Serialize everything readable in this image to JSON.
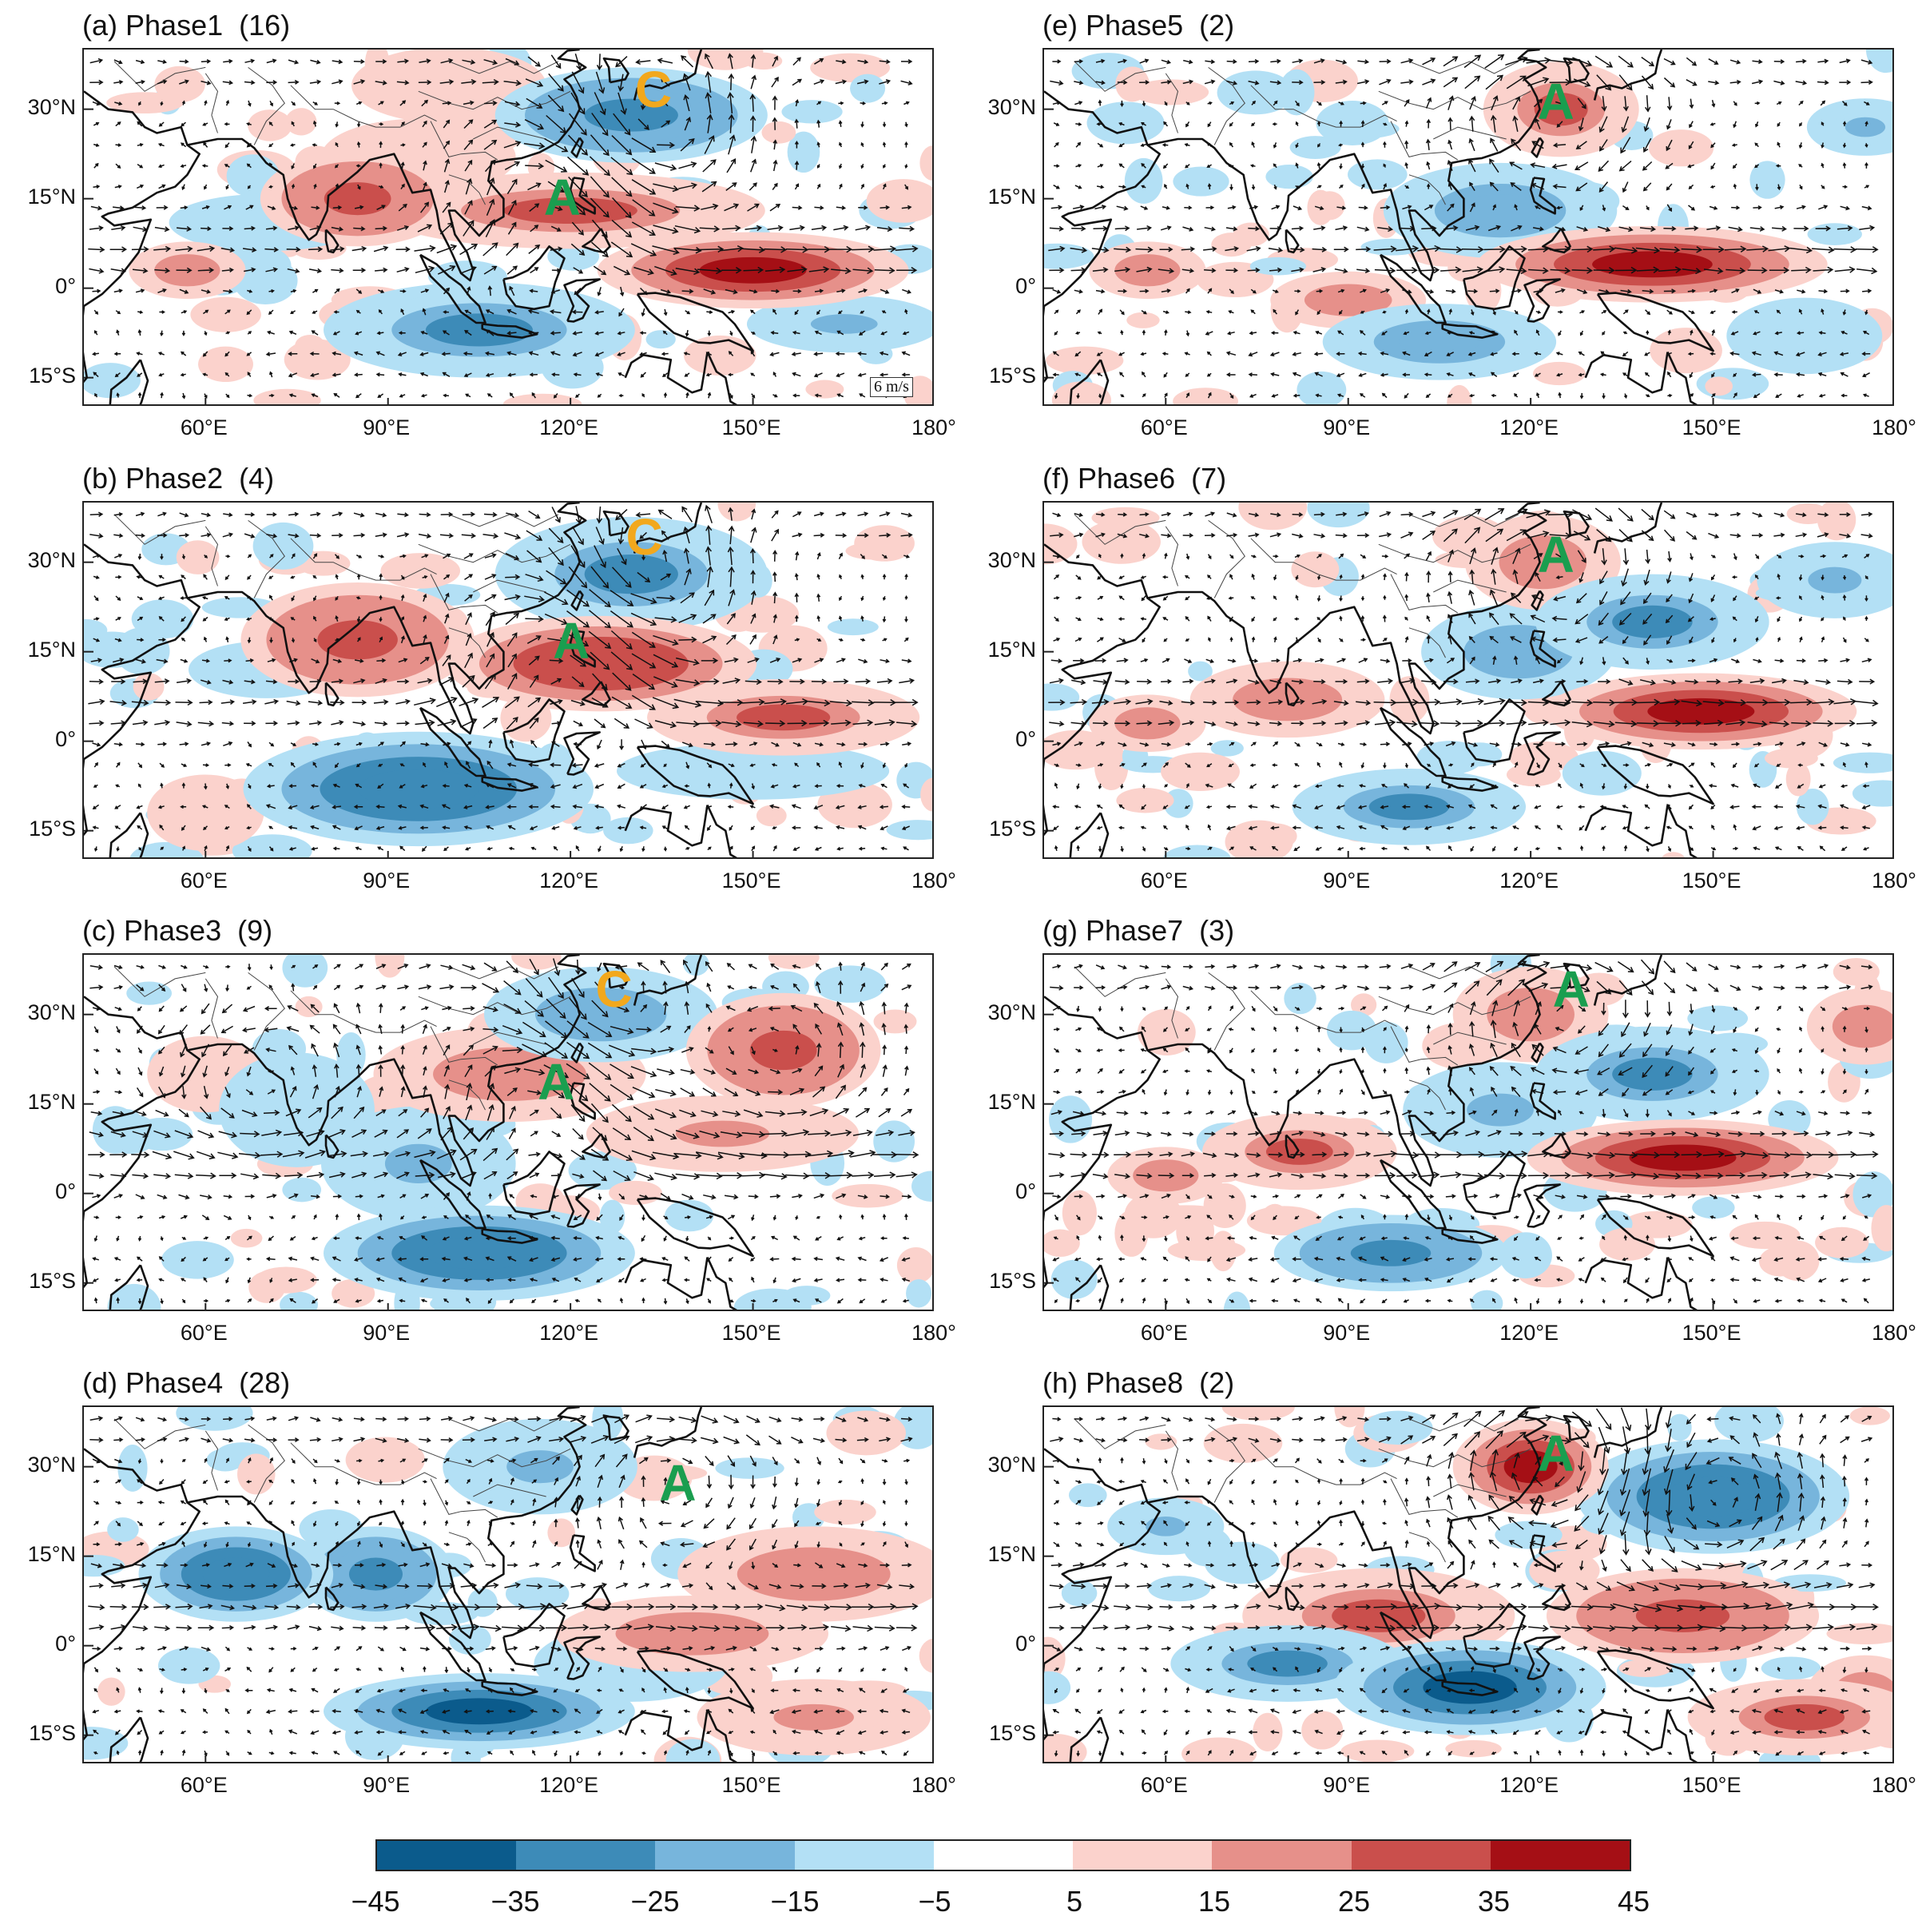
{
  "colorbar": {
    "colors": [
      "#0b5b8c",
      "#3d8bb8",
      "#77b5dc",
      "#b3e0f5",
      "#ffffff",
      "#fbd2cc",
      "#e6908a",
      "#ca4f4c",
      "#a50f15"
    ],
    "ticks": [
      "−45",
      "−35",
      "−25",
      "−15",
      "−5",
      "5",
      "15",
      "25",
      "35",
      "45"
    ]
  },
  "axes": {
    "lat_ticks": [
      "30°N",
      "15°N",
      "0°",
      "15°S"
    ],
    "lon_ticks": [
      "60°E",
      "90°E",
      "120°E",
      "150°E",
      "180°"
    ]
  },
  "reference_vector": "6 m/s",
  "markers": {
    "anticyclone": "A",
    "cyclone": "C",
    "anticyclone_color": "#1a9e4f",
    "cyclone_color": "#f2a81d"
  },
  "panels": [
    {
      "label": "(a)",
      "phase": "Phase1",
      "count": "(16)",
      "marks": [
        {
          "t": "C",
          "lon": 133.5,
          "lat": 33
        },
        {
          "t": "A",
          "lon": 118.5,
          "lat": 15
        }
      ]
    },
    {
      "label": "(b)",
      "phase": "Phase2",
      "count": "(4)",
      "marks": [
        {
          "t": "C",
          "lon": 132,
          "lat": 34
        },
        {
          "t": "A",
          "lon": 120,
          "lat": 16.5
        }
      ]
    },
    {
      "label": "(c)",
      "phase": "Phase3",
      "count": "(9)",
      "marks": [
        {
          "t": "C",
          "lon": 127,
          "lat": 34
        },
        {
          "t": "A",
          "lon": 117.5,
          "lat": 18.5
        }
      ]
    },
    {
      "label": "(d)",
      "phase": "Phase4",
      "count": "(28)",
      "marks": [
        {
          "t": "A",
          "lon": 137.5,
          "lat": 27
        }
      ]
    },
    {
      "label": "(e)",
      "phase": "Phase5",
      "count": "(2)",
      "marks": [
        {
          "t": "A",
          "lon": 124,
          "lat": 31
        }
      ]
    },
    {
      "label": "(f)",
      "phase": "Phase6",
      "count": "(7)",
      "marks": [
        {
          "t": "A",
          "lon": 124,
          "lat": 31
        }
      ]
    },
    {
      "label": "(g)",
      "phase": "Phase7",
      "count": "(3)",
      "marks": [
        {
          "t": "A",
          "lon": 126.5,
          "lat": 34
        }
      ]
    },
    {
      "label": "(h)",
      "phase": "Phase8",
      "count": "(2)",
      "marks": [
        {
          "t": "A",
          "lon": 124,
          "lat": 32
        }
      ]
    }
  ]
}
